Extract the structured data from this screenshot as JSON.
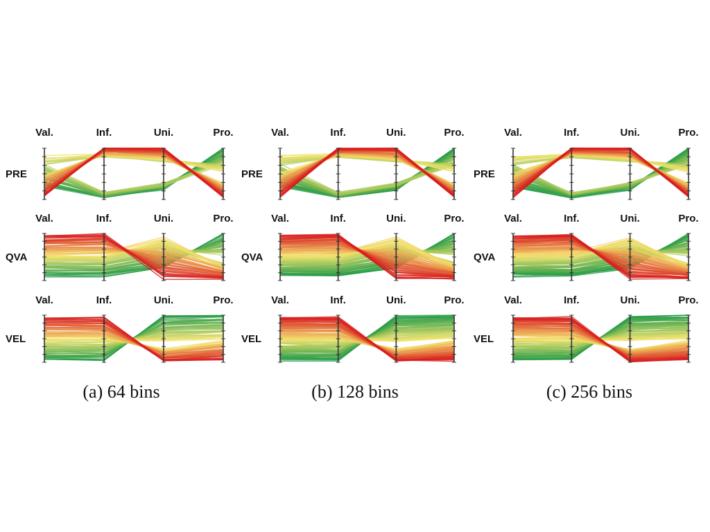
{
  "chart_data": [
    {
      "type": "parallel-coordinates",
      "caption": "(a) 64 bins",
      "bins": 64,
      "axes": [
        "Val.",
        "Inf.",
        "Uni.",
        "Pro."
      ],
      "rows": [
        "PRE",
        "QVA",
        "VEL"
      ]
    },
    {
      "type": "parallel-coordinates",
      "caption": "(b) 128 bins",
      "bins": 128,
      "axes": [
        "Val.",
        "Inf.",
        "Uni.",
        "Pro."
      ],
      "rows": [
        "PRE",
        "QVA",
        "VEL"
      ]
    },
    {
      "type": "parallel-coordinates",
      "caption": "(c) 256 bins",
      "bins": 256,
      "axes": [
        "Val.",
        "Inf.",
        "Uni.",
        "Pro."
      ],
      "rows": [
        "PRE",
        "QVA",
        "VEL"
      ]
    }
  ],
  "colors": {
    "high": "#d7191c",
    "mid": "#f4e36a",
    "low": "#1a9641"
  }
}
